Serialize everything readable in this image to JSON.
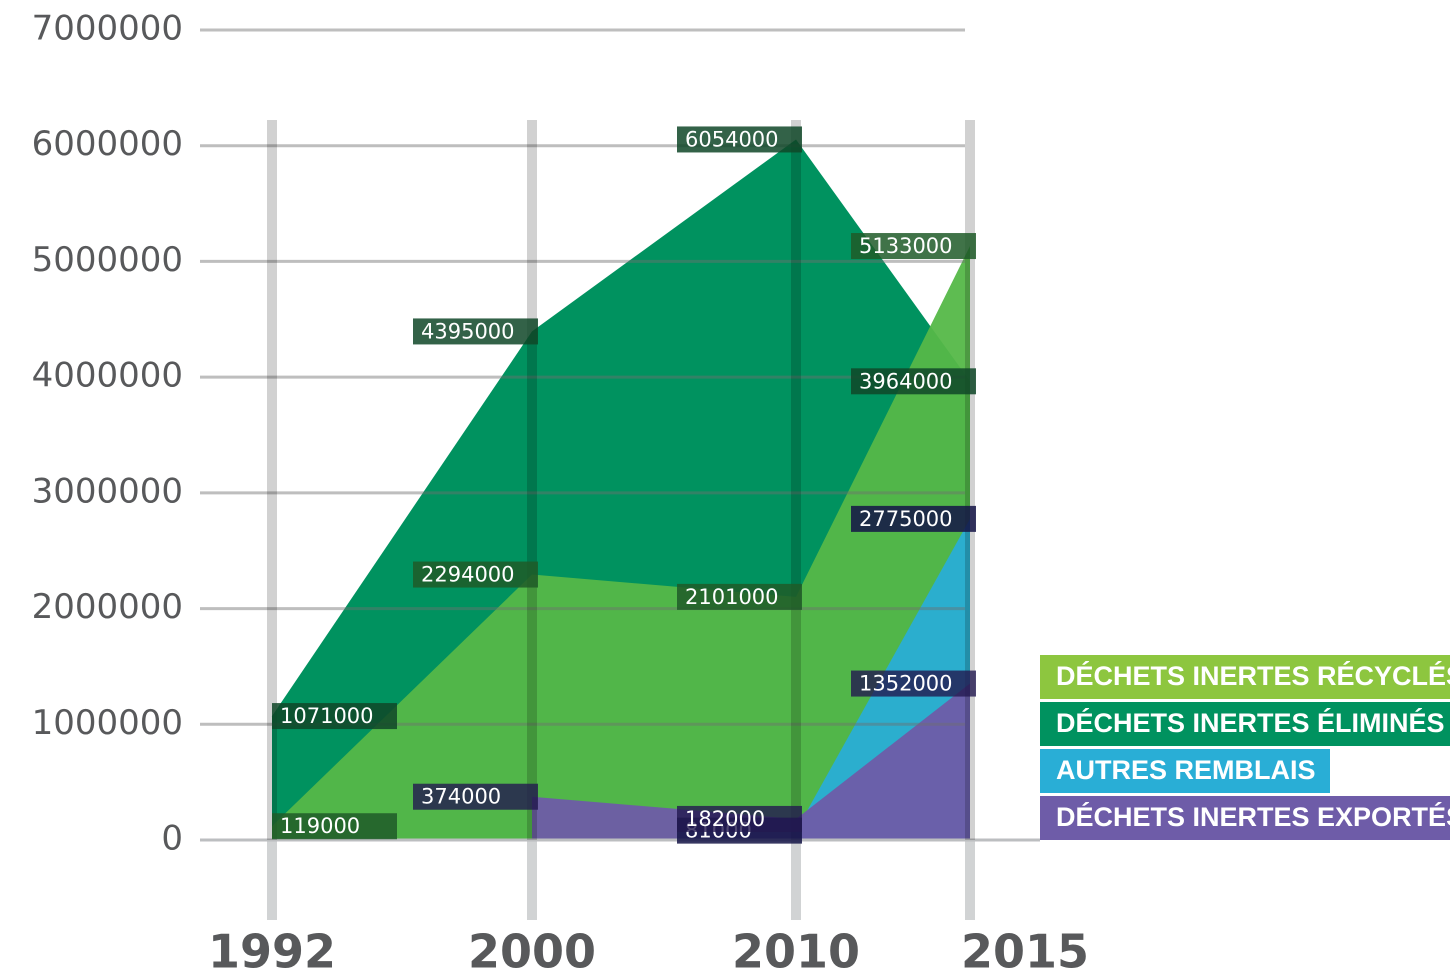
{
  "chart_data": {
    "type": "area",
    "categories": [
      "1992",
      "2000",
      "2010",
      "2015"
    ],
    "series": [
      {
        "name": "DÉCHETS INERTES ÉLIMINÉS",
        "color": "#00925f",
        "values": [
          1071000,
          4395000,
          6054000,
          3964000
        ]
      },
      {
        "name": "DÉCHETS INERTES RÉCYCLÉS",
        "color": "#8dc63f",
        "values": [
          119000,
          2294000,
          2101000,
          5133000
        ]
      },
      {
        "name": "AUTRES REMBLAIS",
        "color": "#29aed6",
        "values": [
          null,
          null,
          81000,
          2775000
        ]
      },
      {
        "name": "DÉCHETS INERTES EXPORTÉS",
        "color": "#6e5ca8",
        "values": [
          null,
          374000,
          182000,
          1352000
        ]
      }
    ],
    "ylim": [
      0,
      7000000
    ],
    "yticks": [
      0,
      1000000,
      2000000,
      3000000,
      4000000,
      5000000,
      6000000,
      7000000
    ],
    "grid": true
  }
}
